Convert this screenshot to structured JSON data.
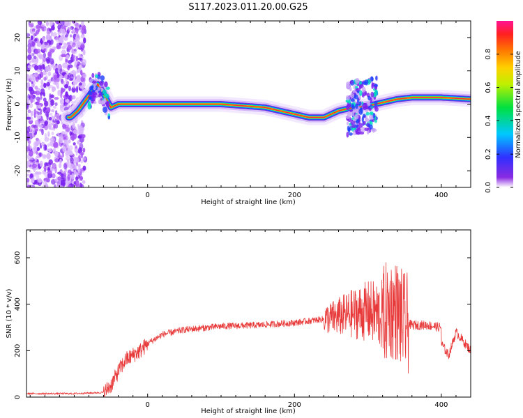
{
  "title": "S117.2023.011.20.00.G25",
  "colors": {
    "snr_line": "#e83a3a",
    "trace_core": "#ff2d2d",
    "background": "#ffffff"
  },
  "chart_data": [
    {
      "type": "heatmap",
      "xlabel": "Height of straight line (km)",
      "ylabel": "Frequency (Hz)",
      "xlim": [
        -165,
        440
      ],
      "ylim": [
        -25,
        25
      ],
      "xticks": [
        0,
        200,
        400
      ],
      "yticks": [
        -20,
        -10,
        0,
        10,
        20
      ],
      "grid": false,
      "colorbar": {
        "label": "Normalized spectral amplitude",
        "range": [
          0,
          1
        ],
        "ticks": [
          "0.0",
          "0.2",
          "0.4",
          "0.6",
          "0.8"
        ],
        "colormap": "rainbow (purple → blue → cyan → green → yellow → orange → red → magenta)"
      },
      "noise_region_km": [
        -165,
        -85
      ],
      "trace_center_hz": {
        "x": [
          -105,
          -95,
          -85,
          -75,
          -68,
          -62,
          -55,
          -50,
          -40,
          -20,
          0,
          50,
          100,
          130,
          160,
          180,
          200,
          220,
          240,
          260,
          280,
          300,
          320,
          340,
          360,
          380,
          400,
          440
        ],
        "y": [
          -4,
          -2,
          1,
          4,
          6,
          4,
          1,
          -1,
          0,
          0,
          0,
          0,
          0,
          -0.5,
          -1,
          -2,
          -3,
          -4,
          -4,
          -2,
          -1,
          -0.5,
          0.5,
          1.5,
          2,
          2,
          2,
          1.5
        ]
      }
    },
    {
      "type": "line",
      "xlabel": "Height of straight line (km)",
      "ylabel": "SNR (10 * v/v)",
      "xlim": [
        -165,
        440
      ],
      "ylim": [
        0,
        720
      ],
      "xticks": [
        0,
        200,
        400
      ],
      "yticks": [
        0,
        200,
        400,
        600
      ],
      "grid": false,
      "series": [
        {
          "x": [
            -165,
            -100,
            -60,
            -50,
            -40,
            -30,
            -20,
            -10,
            0,
            20,
            50,
            100,
            150,
            200,
            250,
            280,
            300,
            320,
            330,
            340,
            345,
            350,
            360,
            380,
            400,
            400,
            410,
            420,
            440
          ],
          "y": [
            15,
            15,
            20,
            50,
            110,
            160,
            180,
            200,
            230,
            270,
            290,
            305,
            310,
            320,
            340,
            360,
            370,
            350,
            380,
            370,
            340,
            320,
            310,
            310,
            300,
            230,
            180,
            280,
            200
          ]
        }
      ]
    }
  ]
}
